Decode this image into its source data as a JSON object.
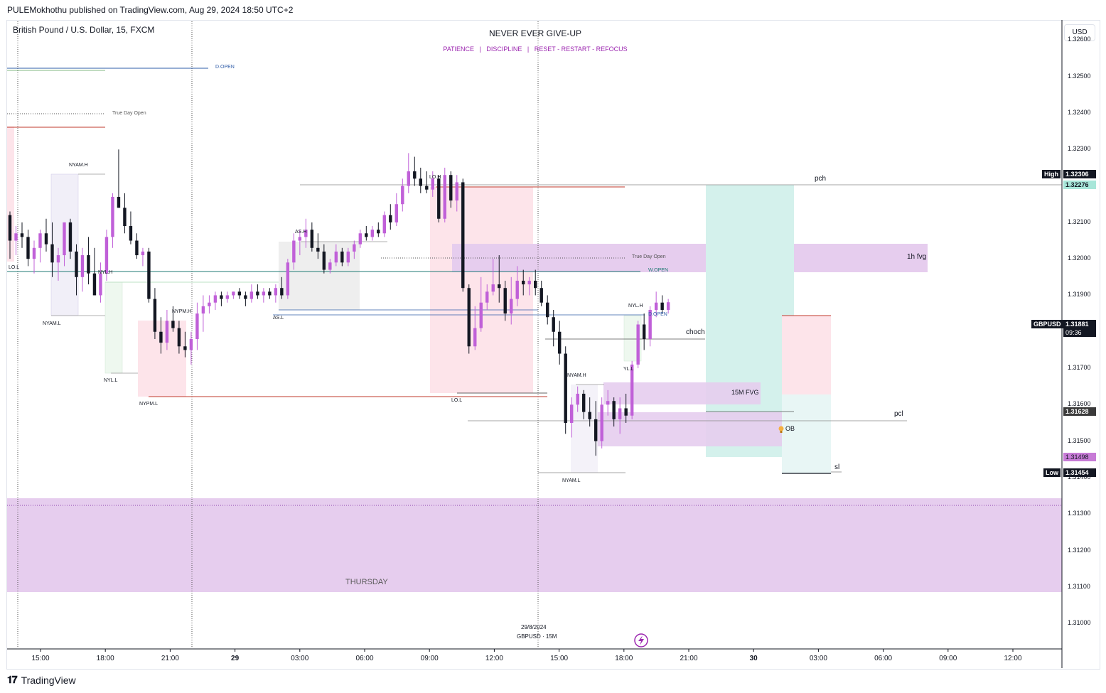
{
  "header": {
    "publisher": "PULEMokhothu published on TradingView.com, Aug 29, 2024 18:50 UTC+2"
  },
  "symbol_title": "British Pound / U.S. Dollar, 15, FXCM",
  "currency": "USD",
  "logo_text": "TradingView",
  "banner": {
    "title": "NEVER EVER GIVE-UP",
    "subtitle": "PATIENCE   |   DISCIPLINE   |   RESET - RESTART - REFOCUS"
  },
  "watermark": {
    "date": "29/8/2024",
    "pair": "GBPUSD · 15M"
  },
  "colors": {
    "bull": "#c060d8",
    "bear": "#131722",
    "purple_zone": "#e6cdee",
    "teal_zone": "#d4f1ec",
    "pink_zone": "#fde4ea",
    "grey_zone": "#eeeeee",
    "blue_line": "#2f5ca8",
    "teal_line": "#1f7a74",
    "red_line": "#c0392b"
  },
  "price_axis": {
    "ticks": [
      "1.32600",
      "1.32500",
      "1.32400",
      "1.32300",
      "1.32200",
      "1.32100",
      "1.32000",
      "1.31900",
      "1.31800",
      "1.31700",
      "1.31600",
      "1.31500",
      "1.31400",
      "1.31300",
      "1.31200",
      "1.31100",
      "1.31000"
    ],
    "tags": {
      "high_label": "High",
      "high_value": "1.32306",
      "pch_value": "1.32276",
      "symbol": "GBPUSD",
      "current_value": "1.31881",
      "countdown": "09:36",
      "pcl_value": "1.31628",
      "sl_value": "1.31498",
      "low_label": "Low",
      "low_value": "1.31454"
    }
  },
  "time_axis": {
    "labels": [
      "15:00",
      "18:00",
      "21:00",
      "29",
      "03:00",
      "06:00",
      "09:00",
      "12:00",
      "15:00",
      "18:00",
      "21:00",
      "30",
      "03:00",
      "06:00",
      "09:00",
      "12:00"
    ]
  },
  "annotations": {
    "d_open_top": "D.OPEN",
    "true_day_open_left": "True Day Open",
    "nyam_h_1": "NYAM.H",
    "nyam_l_1": "NYAM.L",
    "lo_l_1": "LO.L",
    "nyl_h_1": "NYL.H",
    "nyl_l_1": "NYL.L",
    "nypm_h": "NYPM.H",
    "nypm_l": "NYPM.L",
    "as_h": "AS.H",
    "as_l": "AS.L",
    "lo_h": "LO.H",
    "lo_l_2": "LO.L",
    "true_day_open_right": "True Day Open",
    "w_open": "W.OPEN",
    "fvg_1h": "1h fvg",
    "pch": "pch",
    "nyl_h_2": "NYL.H",
    "d_open_right": "D.OPEN",
    "choch": "choch",
    "nyam_h_2": "NYAM.H",
    "nyl_l_2": "YL.L",
    "fvg_15m": "15M FVG",
    "pcl": "pcl",
    "ob": "OB",
    "sl": "sl",
    "nyam_l_2": "NYAM.L",
    "thursday": "THURSDAY"
  },
  "chart_data": {
    "type": "candlestick",
    "symbol": "British Pound / U.S. Dollar",
    "interval": "15",
    "ylim": [
      1.3093,
      1.3271
    ],
    "x_ticks": [
      "15:00",
      "18:00",
      "21:00",
      "29",
      "03:00",
      "06:00",
      "09:00",
      "12:00",
      "15:00",
      "18:00",
      "21:00",
      "30",
      "03:00",
      "06:00",
      "09:00",
      "12:00"
    ],
    "candles_ohlc": [
      [
        1.3212,
        1.3213,
        1.32,
        1.3205
      ],
      [
        1.3205,
        1.3209,
        1.3201,
        1.3207
      ],
      [
        1.3207,
        1.321,
        1.3203,
        1.3206
      ],
      [
        1.3206,
        1.3208,
        1.3198,
        1.32
      ],
      [
        1.32,
        1.3205,
        1.3196,
        1.3203
      ],
      [
        1.3203,
        1.3208,
        1.3199,
        1.3207
      ],
      [
        1.3207,
        1.3211,
        1.3202,
        1.3204
      ],
      [
        1.3204,
        1.321,
        1.3195,
        1.3199
      ],
      [
        1.3199,
        1.3203,
        1.3194,
        1.3201
      ],
      [
        1.3201,
        1.321,
        1.3198,
        1.321
      ],
      [
        1.321,
        1.3211,
        1.32,
        1.3202
      ],
      [
        1.3202,
        1.3204,
        1.319,
        1.3195
      ],
      [
        1.3195,
        1.3203,
        1.3191,
        1.3201
      ],
      [
        1.3201,
        1.3206,
        1.3193,
        1.3196
      ],
      [
        1.3196,
        1.3203,
        1.319,
        1.319
      ],
      [
        1.319,
        1.3199,
        1.3188,
        1.3196
      ],
      [
        1.3196,
        1.3208,
        1.3194,
        1.3206
      ],
      [
        1.3206,
        1.3218,
        1.3203,
        1.3217
      ],
      [
        1.3217,
        1.323,
        1.3214,
        1.3214
      ],
      [
        1.3214,
        1.3218,
        1.3207,
        1.3209
      ],
      [
        1.3209,
        1.3213,
        1.3204,
        1.3205
      ],
      [
        1.3205,
        1.3207,
        1.32,
        1.3201
      ],
      [
        1.3201,
        1.3203,
        1.3198,
        1.3202
      ],
      [
        1.3202,
        1.3203,
        1.3188,
        1.3189
      ],
      [
        1.3189,
        1.3192,
        1.3178,
        1.318
      ],
      [
        1.318,
        1.3184,
        1.3174,
        1.3177
      ],
      [
        1.3177,
        1.3186,
        1.3175,
        1.3183
      ],
      [
        1.3183,
        1.3187,
        1.318,
        1.3181
      ],
      [
        1.3181,
        1.3183,
        1.3174,
        1.3176
      ],
      [
        1.3176,
        1.318,
        1.3173,
        1.3175
      ],
      [
        1.3175,
        1.318,
        1.3171,
        1.3178
      ],
      [
        1.3178,
        1.3188,
        1.3175,
        1.3185
      ],
      [
        1.3185,
        1.319,
        1.318,
        1.3187
      ],
      [
        1.3187,
        1.319,
        1.3185,
        1.3188
      ],
      [
        1.3188,
        1.3191,
        1.3186,
        1.319
      ],
      [
        1.319,
        1.3191,
        1.3187,
        1.3189
      ],
      [
        1.3189,
        1.3191,
        1.3188,
        1.319
      ],
      [
        1.319,
        1.3191,
        1.3189,
        1.3191
      ],
      [
        1.3191,
        1.3192,
        1.3189,
        1.319
      ],
      [
        1.319,
        1.3191,
        1.3187,
        1.3189
      ],
      [
        1.3189,
        1.3193,
        1.3188,
        1.3191
      ],
      [
        1.3191,
        1.3193,
        1.3189,
        1.319
      ],
      [
        1.319,
        1.3192,
        1.3188,
        1.3191
      ],
      [
        1.3191,
        1.3192,
        1.3189,
        1.319
      ],
      [
        1.319,
        1.3193,
        1.3188,
        1.3192
      ],
      [
        1.3192,
        1.3195,
        1.3189,
        1.319
      ],
      [
        1.319,
        1.32,
        1.3189,
        1.3199
      ],
      [
        1.3199,
        1.3207,
        1.3197,
        1.3205
      ],
      [
        1.3205,
        1.3208,
        1.3201,
        1.3206
      ],
      [
        1.3206,
        1.3211,
        1.3203,
        1.3208
      ],
      [
        1.3208,
        1.321,
        1.3202,
        1.3203
      ],
      [
        1.3203,
        1.3207,
        1.32,
        1.3202
      ],
      [
        1.3202,
        1.3204,
        1.3196,
        1.3197
      ],
      [
        1.3197,
        1.32,
        1.3196,
        1.3199
      ],
      [
        1.3199,
        1.3204,
        1.3198,
        1.3202
      ],
      [
        1.3202,
        1.3203,
        1.3198,
        1.3199
      ],
      [
        1.3199,
        1.3203,
        1.3198,
        1.3202
      ],
      [
        1.3202,
        1.3205,
        1.32,
        1.3204
      ],
      [
        1.3204,
        1.3208,
        1.3203,
        1.3207
      ],
      [
        1.3207,
        1.3209,
        1.3205,
        1.3206
      ],
      [
        1.3206,
        1.3209,
        1.3205,
        1.3208
      ],
      [
        1.3208,
        1.321,
        1.3206,
        1.3207
      ],
      [
        1.3207,
        1.3213,
        1.3206,
        1.3212
      ],
      [
        1.3212,
        1.3215,
        1.3208,
        1.321
      ],
      [
        1.321,
        1.3218,
        1.3209,
        1.3215
      ],
      [
        1.3215,
        1.3222,
        1.3213,
        1.322
      ],
      [
        1.322,
        1.3229,
        1.3218,
        1.3224
      ],
      [
        1.3224,
        1.3228,
        1.322,
        1.3222
      ],
      [
        1.3222,
        1.3225,
        1.3218,
        1.322
      ],
      [
        1.322,
        1.3224,
        1.3218,
        1.3219
      ],
      [
        1.3219,
        1.3224,
        1.3217,
        1.3222
      ],
      [
        1.3222,
        1.3223,
        1.321,
        1.3211
      ],
      [
        1.3211,
        1.3225,
        1.321,
        1.3223
      ],
      [
        1.3223,
        1.3224,
        1.3214,
        1.3216
      ],
      [
        1.3216,
        1.3223,
        1.3213,
        1.3221
      ],
      [
        1.3221,
        1.3222,
        1.3191,
        1.3192
      ],
      [
        1.3192,
        1.3193,
        1.3174,
        1.3176
      ],
      [
        1.3176,
        1.3187,
        1.3175,
        1.3181
      ],
      [
        1.3181,
        1.3195,
        1.318,
        1.3188
      ],
      [
        1.3188,
        1.3193,
        1.3186,
        1.3191
      ],
      [
        1.3191,
        1.32,
        1.319,
        1.3193
      ],
      [
        1.3193,
        1.3201,
        1.3188,
        1.3192
      ],
      [
        1.3192,
        1.3194,
        1.3183,
        1.3185
      ],
      [
        1.3185,
        1.3195,
        1.3182,
        1.3189
      ],
      [
        1.3189,
        1.3198,
        1.3187,
        1.3194
      ],
      [
        1.3194,
        1.3197,
        1.319,
        1.3193
      ],
      [
        1.3193,
        1.3195,
        1.319,
        1.3194
      ],
      [
        1.3194,
        1.3197,
        1.319,
        1.3192
      ],
      [
        1.3192,
        1.3194,
        1.3187,
        1.3188
      ],
      [
        1.3188,
        1.319,
        1.3182,
        1.3184
      ],
      [
        1.3184,
        1.3186,
        1.3176,
        1.318
      ],
      [
        1.318,
        1.3183,
        1.3171,
        1.3174
      ],
      [
        1.3174,
        1.3176,
        1.3152,
        1.3155
      ],
      [
        1.3155,
        1.3162,
        1.3151,
        1.316
      ],
      [
        1.316,
        1.3165,
        1.3158,
        1.3163
      ],
      [
        1.3163,
        1.3164,
        1.3156,
        1.3158
      ],
      [
        1.3158,
        1.3162,
        1.3154,
        1.3156
      ],
      [
        1.3156,
        1.3161,
        1.3146,
        1.315
      ],
      [
        1.315,
        1.3162,
        1.3148,
        1.316
      ],
      [
        1.316,
        1.3164,
        1.3157,
        1.3161
      ],
      [
        1.3161,
        1.3162,
        1.3154,
        1.3156
      ],
      [
        1.3156,
        1.3162,
        1.3152,
        1.3159
      ],
      [
        1.3159,
        1.3163,
        1.3155,
        1.3157
      ],
      [
        1.3157,
        1.3172,
        1.3156,
        1.3171
      ],
      [
        1.3171,
        1.3183,
        1.317,
        1.3182
      ],
      [
        1.3182,
        1.3185,
        1.3175,
        1.3178
      ],
      [
        1.3178,
        1.3187,
        1.3176,
        1.3186
      ],
      [
        1.3186,
        1.3191,
        1.3184,
        1.3188
      ],
      [
        1.3188,
        1.319,
        1.3185,
        1.3186
      ],
      [
        1.3186,
        1.3189,
        1.3185,
        1.31881
      ]
    ]
  }
}
